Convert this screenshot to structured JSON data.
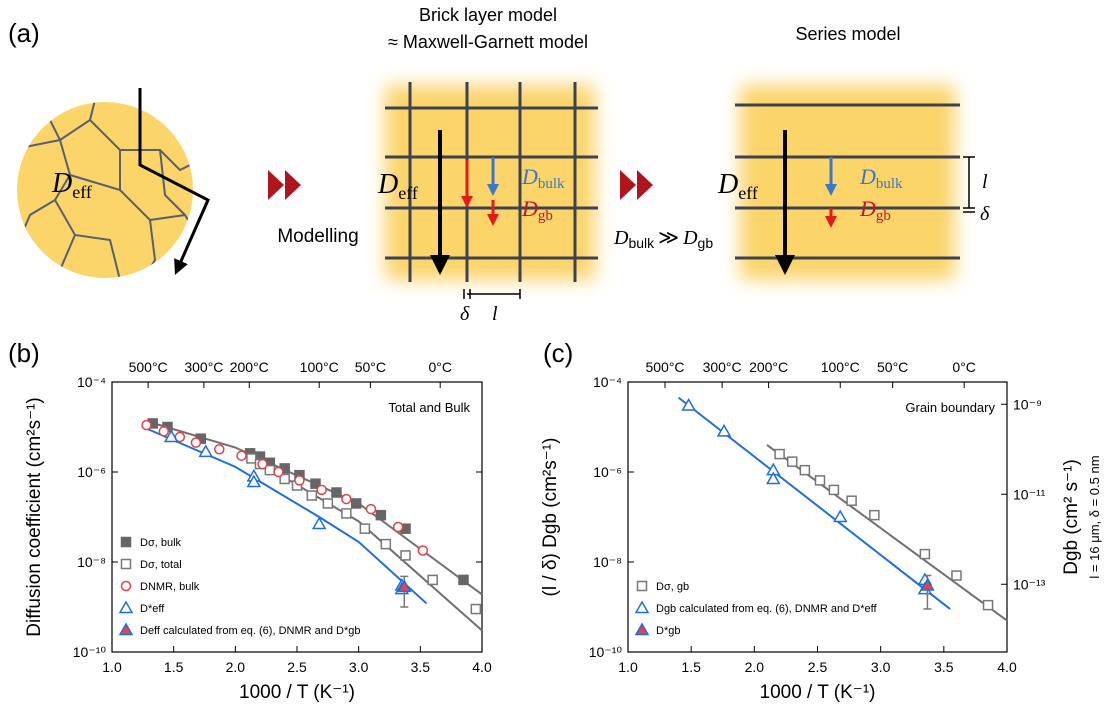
{
  "diagram": {
    "panel_label": "(a)",
    "brick_title": [
      "Brick layer model",
      "≈ Maxwell-Garnett model"
    ],
    "series_title": "Series model",
    "modelling": "Modelling",
    "deff": {
      "symbol": "D",
      "sub": "eff"
    },
    "dbulk": {
      "symbol": "D",
      "sub": "bulk"
    },
    "dgb": {
      "symbol": "D",
      "sub": "gb"
    },
    "relation": "≫",
    "delta": "δ",
    "l": "l"
  },
  "chart_data": [
    {
      "type": "scatter",
      "panel_label": "(b)",
      "annotation": "Total and Bulk",
      "xlabel": "1000 / T (K⁻¹)",
      "ylabel": "Diffusion coefficient (cm²s⁻¹)",
      "xlim": [
        1.0,
        4.0
      ],
      "xticks": [
        {
          "value": 1.0,
          "label": "1.0"
        },
        1.5,
        {
          "value": 2.0,
          "label": "2.0"
        },
        2.5,
        {
          "value": 3.0,
          "label": "3.0"
        },
        3.5,
        {
          "value": 4.0,
          "label": "4.0"
        }
      ],
      "ylim": [
        1e-10,
        0.0001
      ],
      "log_y": true,
      "yticks": [
        {
          "value": 1e-10,
          "label": "10⁻¹⁰"
        },
        {
          "value": 1e-08,
          "label": "10⁻⁸"
        },
        {
          "value": 1e-06,
          "label": "10⁻⁶"
        },
        {
          "value": 0.0001,
          "label": "10⁻⁴"
        }
      ],
      "top_xticks": [
        {
          "value": 1.293,
          "label": "500°C"
        },
        {
          "value": 1.745,
          "label": "300°C"
        },
        {
          "value": 2.113,
          "label": "200°C"
        },
        {
          "value": 2.68,
          "label": "100°C"
        },
        {
          "value": 3.095,
          "label": "50°C"
        },
        {
          "value": 3.661,
          "label": "0°C"
        }
      ],
      "legend": "lower left",
      "series": [
        {
          "name": "Dσ, bulk",
          "color": "#666666",
          "marker": "square",
          "filled": true,
          "x": [
            1.33,
            1.45,
            1.72,
            2.12,
            2.2,
            2.28,
            2.4,
            2.52,
            2.65,
            2.82,
            2.98,
            3.18,
            3.38,
            3.85
          ],
          "values": [
            1.2e-05,
            1e-05,
            5.5e-06,
            2.6e-06,
            2.2e-06,
            1.6e-06,
            1.2e-06,
            8.5e-07,
            5.5e-07,
            3.5e-07,
            2e-07,
            1.1e-07,
            5.5e-08,
            4e-09
          ]
        },
        {
          "name": "Dσ, total",
          "color": "#777777",
          "marker": "square",
          "filled": false,
          "x": [
            2.13,
            2.2,
            2.28,
            2.4,
            2.5,
            2.62,
            2.75,
            2.9,
            3.05,
            3.22,
            3.38,
            3.6,
            3.95
          ],
          "values": [
            2e-06,
            1.5e-06,
            1.1e-06,
            7e-07,
            5e-07,
            3e-07,
            2e-07,
            1.2e-07,
            5.5e-08,
            2.5e-08,
            1.4e-08,
            4e-09,
            9e-10
          ]
        },
        {
          "name": "DNMR, bulk",
          "color": "#e0424a",
          "marker": "circle",
          "filled": false,
          "x": [
            1.28,
            1.42,
            1.55,
            1.68,
            1.87,
            2.05,
            2.22,
            2.35,
            2.52,
            2.7,
            2.9,
            3.1,
            3.32,
            3.52
          ],
          "values": [
            1.1e-05,
            8e-06,
            6e-06,
            4.5e-06,
            3.2e-06,
            2.3e-06,
            1.5e-06,
            1e-06,
            6.5e-07,
            4e-07,
            2.5e-07,
            1.5e-07,
            6e-08,
            1.8e-08
          ]
        },
        {
          "name": "D*eff",
          "color": "#1f6fd8",
          "marker": "triangle",
          "filled": false,
          "x": [
            1.48,
            1.76,
            2.15,
            2.15,
            2.68,
            3.35,
            3.35
          ],
          "values": [
            6e-06,
            2.8e-06,
            8e-07,
            6e-07,
            7e-08,
            3e-09,
            2.5e-09
          ]
        },
        {
          "name": "Deff calculated from eq. (6), DNMR and D*gb",
          "color": "#1f6fd8",
          "fill": "#e8414c",
          "marker": "triangle",
          "filled": true,
          "x": [
            3.37
          ],
          "values": [
            2.8e-09
          ],
          "yerr_lower": [
            1.8e-09
          ],
          "yerr_upper": [
            2e-09
          ]
        }
      ],
      "fit_lines": [
        {
          "color": "#707070",
          "x": [
            1.3,
            2.0,
            3.0,
            4.0
          ],
          "values": [
            1.3e-05,
            3.5e-06,
            2e-07,
            1.9e-09
          ]
        },
        {
          "color": "#707070",
          "x": [
            2.1,
            3.0,
            4.0
          ],
          "values": [
            2.3e-06,
            8e-08,
            3e-10
          ]
        },
        {
          "color": "#1f6fd8",
          "x": [
            1.25,
            2.0,
            2.68,
            3.0,
            3.55
          ],
          "values": [
            1e-05,
            1.3e-06,
            1e-07,
            2.8e-08,
            1.2e-09
          ]
        }
      ]
    },
    {
      "type": "scatter",
      "panel_label": "(c)",
      "annotation": "Grain boundary",
      "xlabel": "1000 / T (K⁻¹)",
      "ylabel": "(l / δ) Dgb (cm²s⁻¹)",
      "y2label": "Dgb (cm² s⁻¹)",
      "y2note": "l = 16 μm, δ = 0.5 nm",
      "xlim": [
        1.0,
        4.0
      ],
      "xticks": [
        {
          "value": 1.0,
          "label": "1.0"
        },
        1.5,
        {
          "value": 2.0,
          "label": "2.0"
        },
        2.5,
        {
          "value": 3.0,
          "label": "3.0"
        },
        3.5,
        {
          "value": 4.0,
          "label": "4.0"
        }
      ],
      "ylim": [
        1e-10,
        0.0001
      ],
      "log_y": true,
      "yticks": [
        {
          "value": 1e-10,
          "label": "10⁻¹⁰"
        },
        {
          "value": 1e-08,
          "label": "10⁻⁸"
        },
        {
          "value": 1e-06,
          "label": "10⁻⁶"
        },
        {
          "value": 0.0001,
          "label": "10⁻⁴"
        }
      ],
      "y2lim": [
        3.125e-15,
        3.125e-09
      ],
      "y2ticks": [
        {
          "value": 1e-13,
          "label": "10⁻¹³"
        },
        {
          "value": 1e-11,
          "label": "10⁻¹¹"
        },
        {
          "value": 1e-09,
          "label": "10⁻⁹"
        }
      ],
      "top_xticks": [
        {
          "value": 1.293,
          "label": "500°C"
        },
        {
          "value": 1.745,
          "label": "300°C"
        },
        {
          "value": 2.113,
          "label": "200°C"
        },
        {
          "value": 2.68,
          "label": "100°C"
        },
        {
          "value": 3.095,
          "label": "50°C"
        },
        {
          "value": 3.661,
          "label": "0°C"
        }
      ],
      "legend": "lower left",
      "series": [
        {
          "name": "Dσ, gb",
          "color": "#777777",
          "marker": "square",
          "filled": false,
          "x": [
            2.2,
            2.3,
            2.4,
            2.52,
            2.63,
            2.77,
            2.95,
            3.35,
            3.6,
            3.85
          ],
          "values": [
            2.5e-06,
            1.7e-06,
            1.1e-06,
            6.5e-07,
            4e-07,
            2.3e-07,
            1.1e-07,
            1.5e-08,
            5e-09,
            1.1e-09
          ]
        },
        {
          "name": "Dgb calculated from eq. (6), DNMR and D*eff",
          "color": "#1f6fd8",
          "marker": "triangle",
          "filled": false,
          "x": [
            1.48,
            1.76,
            2.15,
            2.15,
            2.68,
            3.35,
            3.35
          ],
          "values": [
            3e-05,
            8e-06,
            1.1e-06,
            7e-07,
            1e-07,
            4e-09,
            2.5e-09
          ]
        },
        {
          "name": "D*gb",
          "color": "#1f6fd8",
          "fill": "#e8414c",
          "marker": "triangle",
          "filled": true,
          "x": [
            3.37
          ],
          "values": [
            3e-09
          ],
          "yerr_lower": [
            2.1e-09
          ],
          "yerr_upper": [
            2e-09
          ]
        }
      ],
      "fit_lines": [
        {
          "color": "#707070",
          "x": [
            2.1,
            4.0
          ],
          "values": [
            4e-06,
            5e-10
          ]
        },
        {
          "color": "#1f6fd8",
          "x": [
            1.4,
            3.55
          ],
          "values": [
            4.5e-05,
            9e-10
          ]
        }
      ]
    }
  ]
}
